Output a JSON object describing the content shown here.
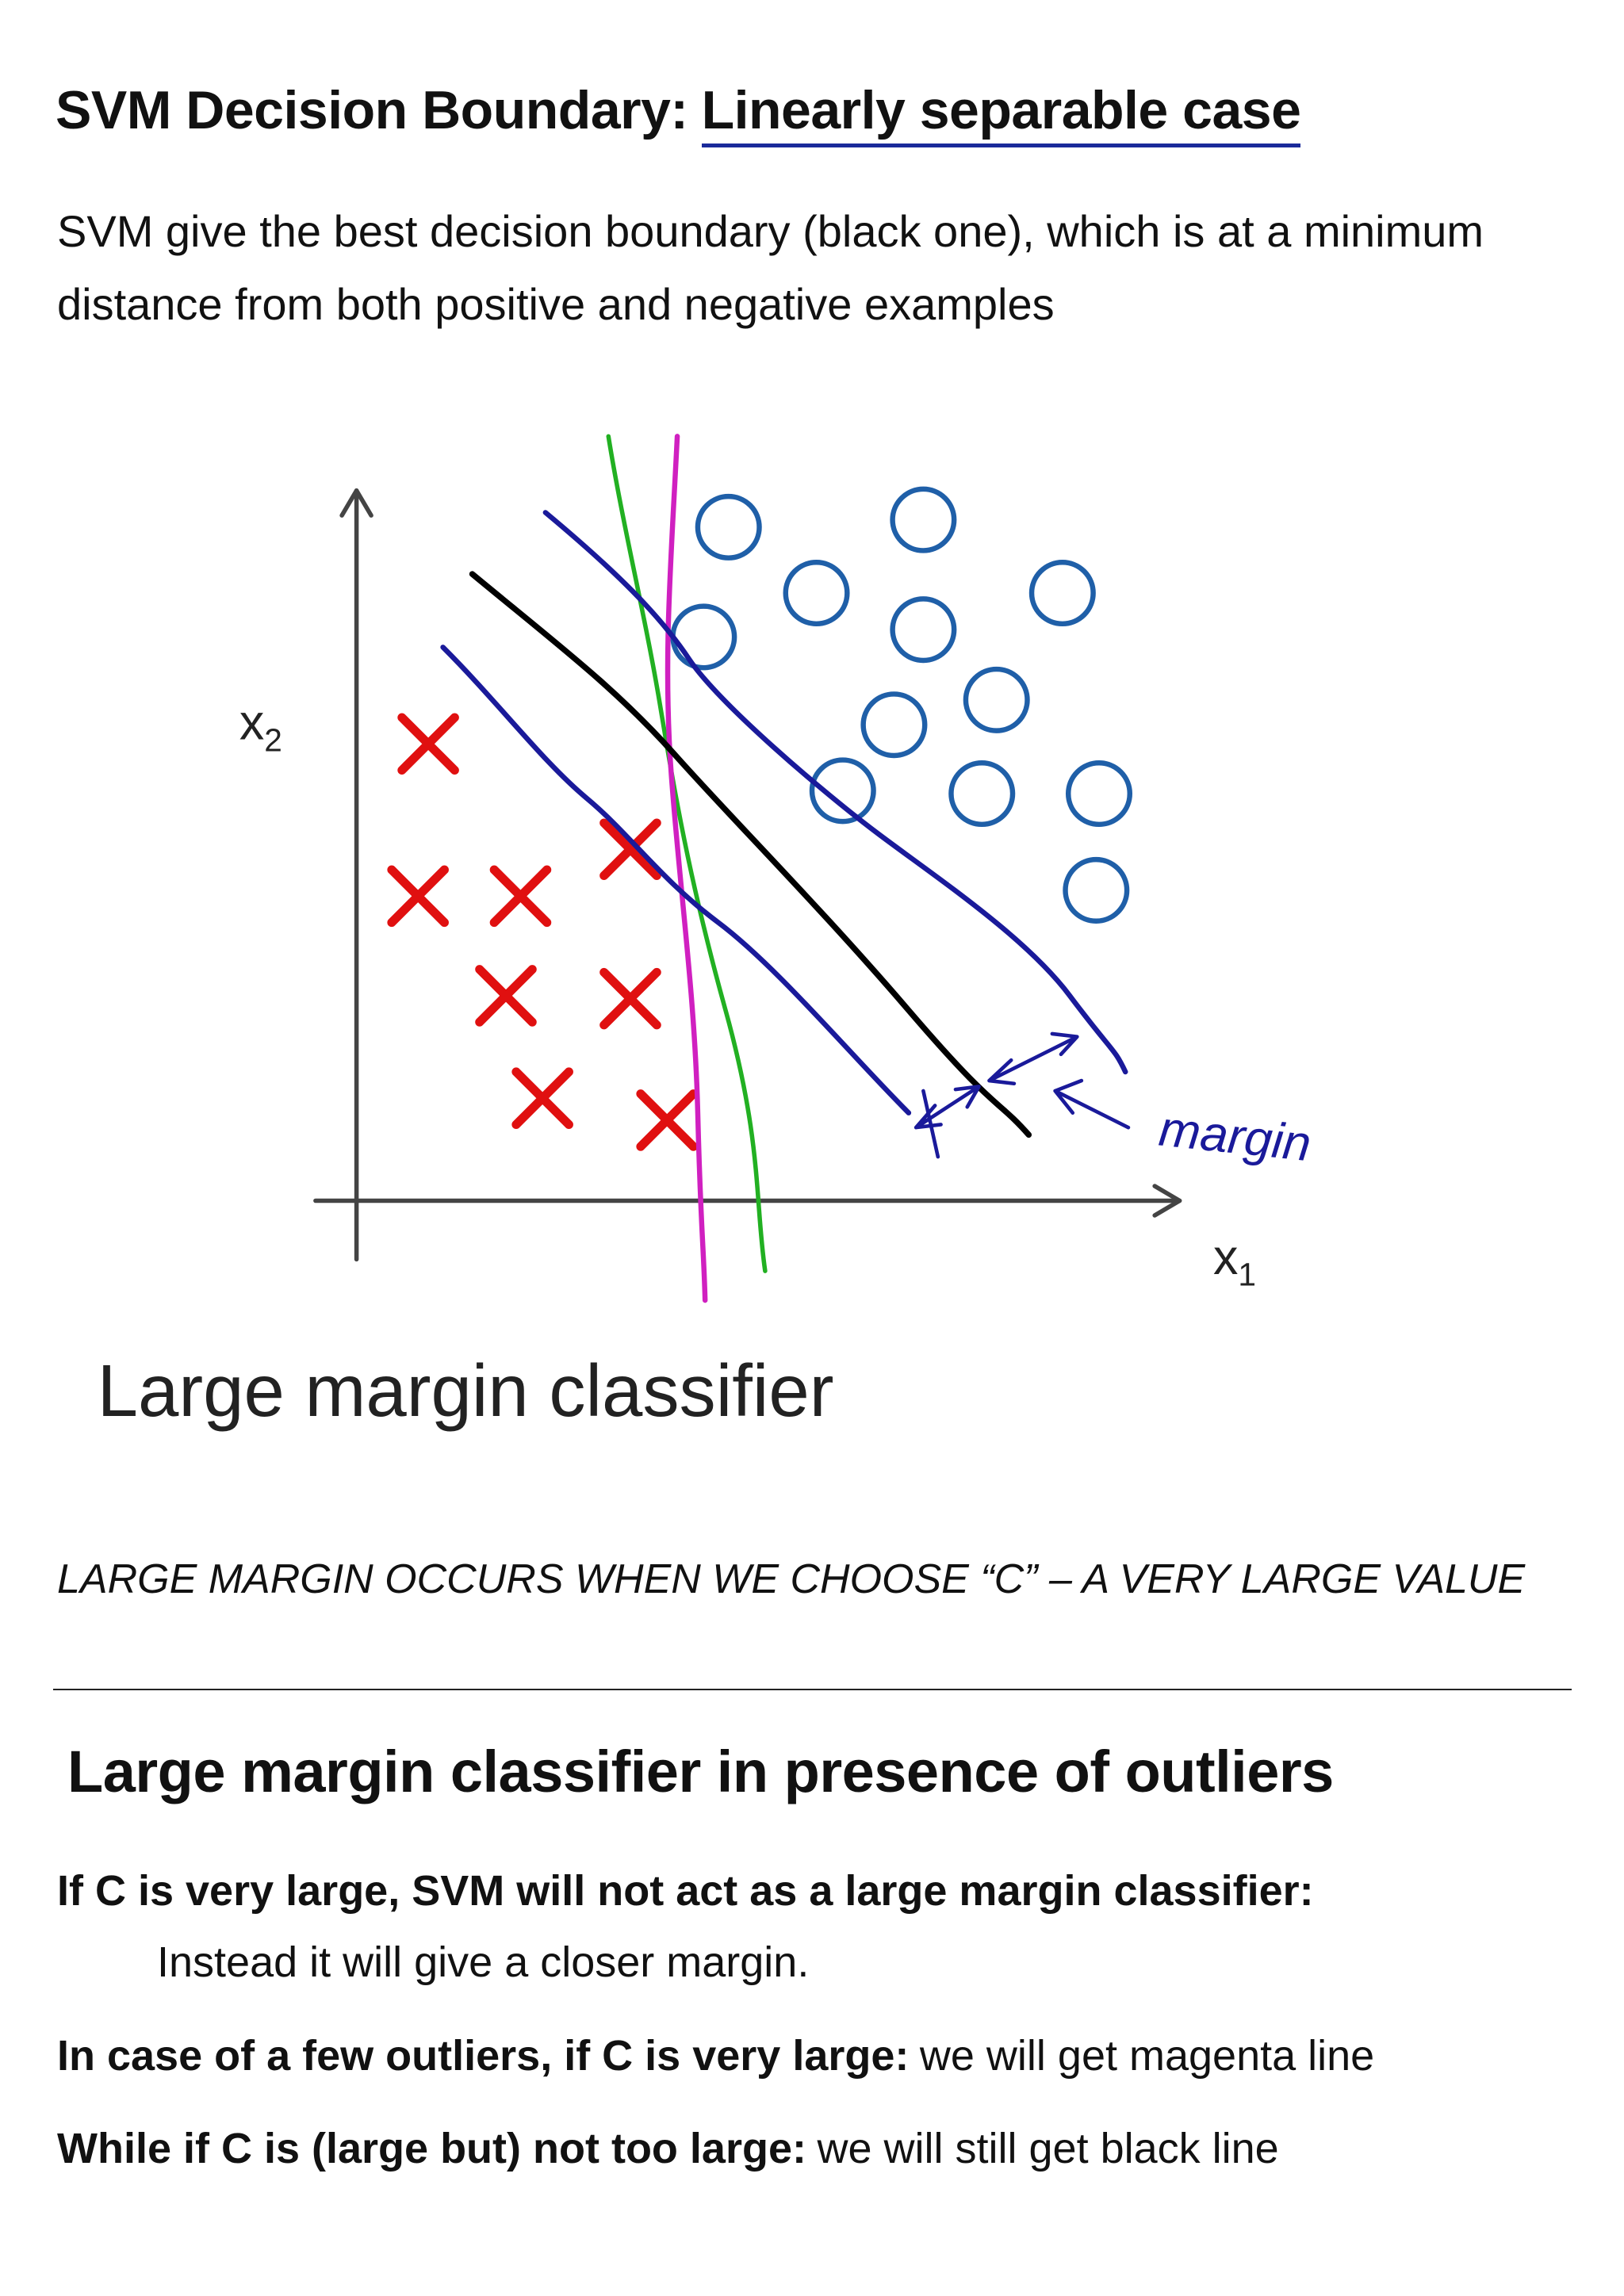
{
  "header": {
    "title_plain": "SVM Decision Boundary:",
    "title_underlined": "Linearly separable case"
  },
  "intro": "SVM give the best decision boundary (black one), which is at a minimum distance from both positive and negative examples",
  "figure": {
    "y_axis_label": {
      "base": "x",
      "sub": "2"
    },
    "x_axis_label": {
      "base": "x",
      "sub": "1"
    },
    "annotation": "margin",
    "caption": "Large margin classifier"
  },
  "note": "LARGE MARGIN OCCURS WHEN WE CHOOSE “C” – A VERY LARGE VALUE",
  "section": {
    "title": "Large margin classifier in presence of outliers",
    "items": [
      {
        "bold": "If C is very large, SVM will not act as a large margin classifier:"
      },
      {
        "indent": "Instead it will give a closer margin."
      },
      {
        "bold": "In case of a few outliers, if C is very large:",
        "text": "we will get magenta line"
      },
      {
        "bold": "While if C is (large but) not too large:",
        "text": "we will still get black line"
      }
    ]
  }
}
